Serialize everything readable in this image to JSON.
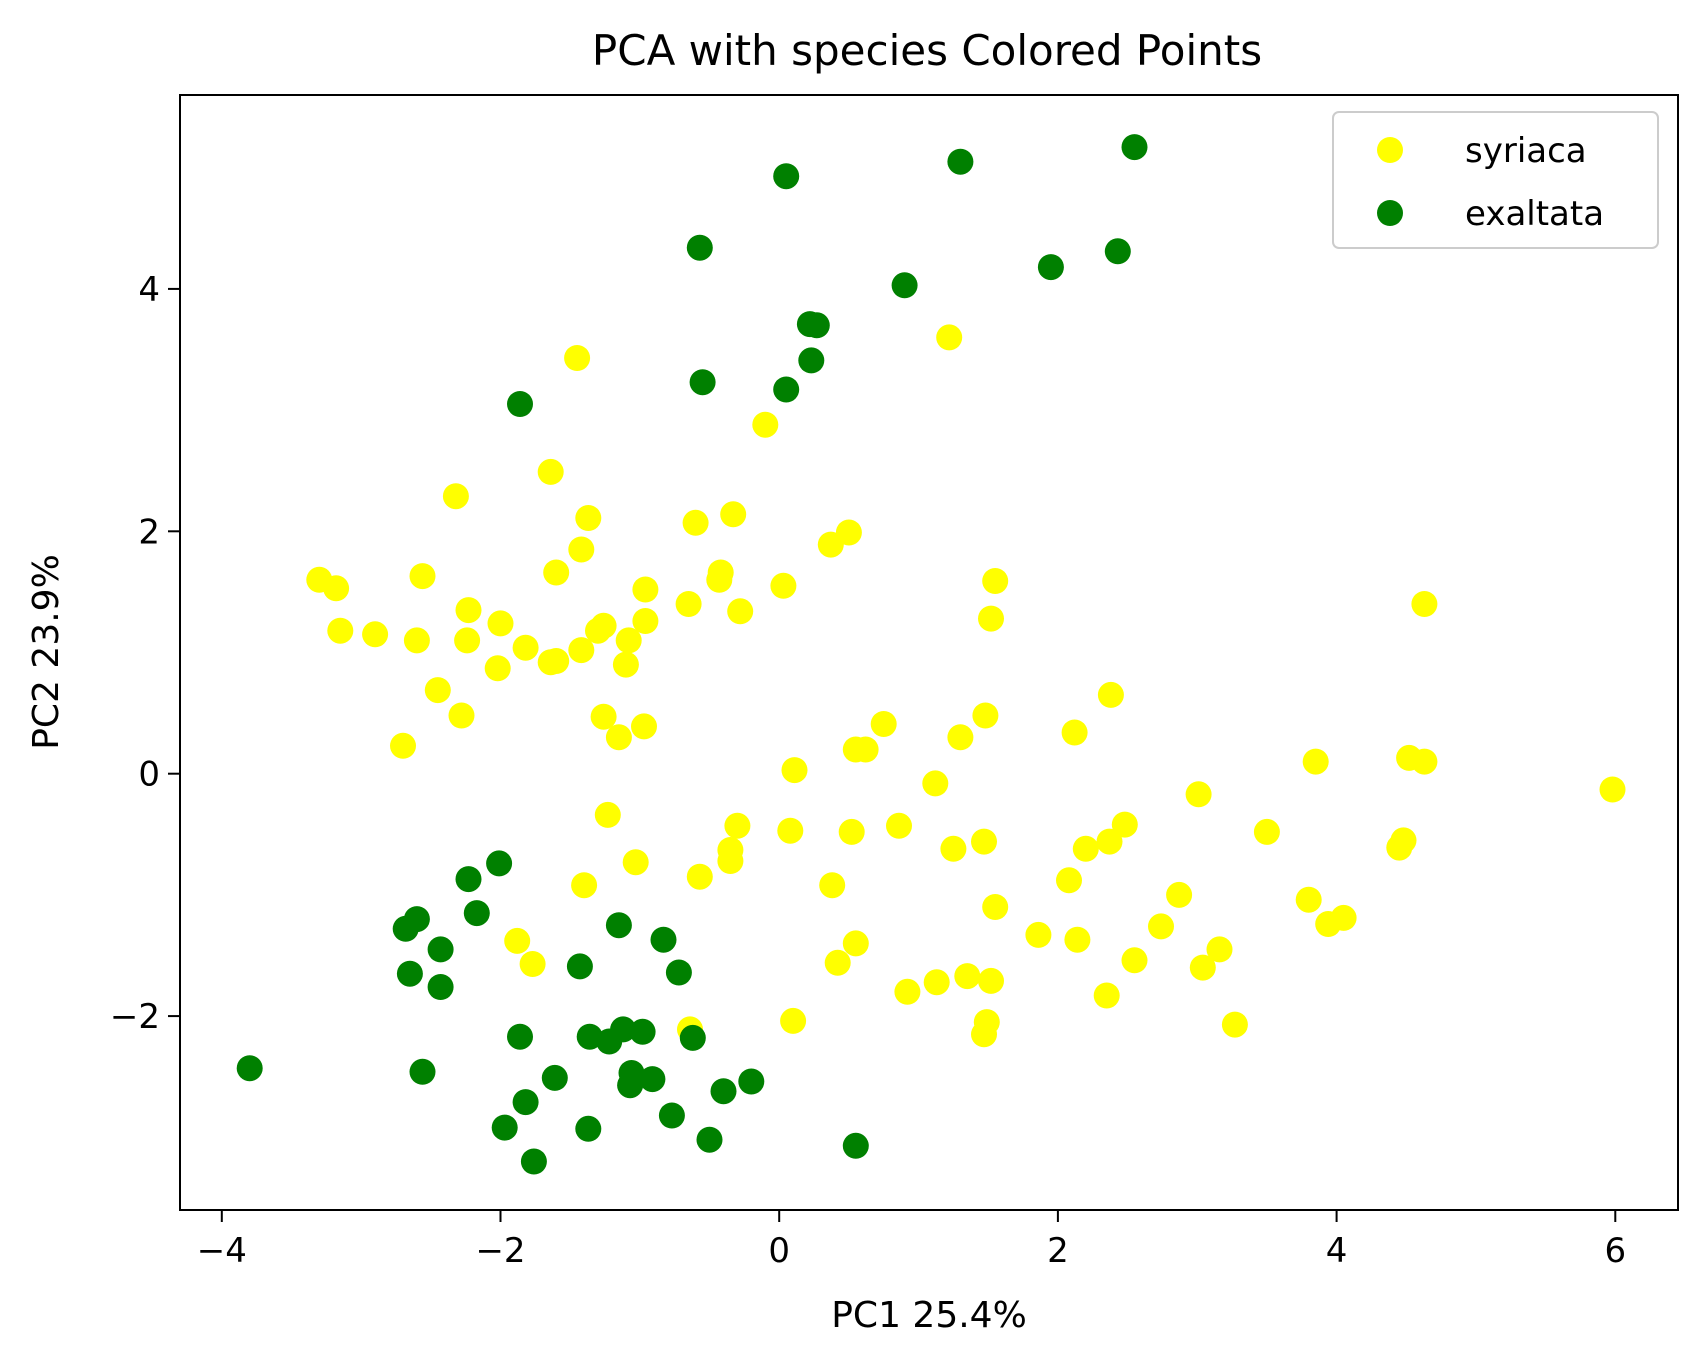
{
  "chart_data": {
    "type": "scatter",
    "title": "PCA with species Colored Points",
    "xlabel": "PC1 25.4%",
    "ylabel": "PC2 23.9%",
    "xlim": [
      -4.3,
      6.45
    ],
    "ylim": [
      -3.6,
      5.6
    ],
    "xticks": [
      -4,
      -2,
      0,
      2,
      4,
      6
    ],
    "yticks": [
      -2,
      0,
      2,
      4
    ],
    "xtick_labels": [
      "−4",
      "−2",
      "0",
      "2",
      "4",
      "6"
    ],
    "ytick_labels": [
      "−2",
      "0",
      "2",
      "4"
    ],
    "grid": false,
    "legend_position": "top-right",
    "series": [
      {
        "name": "syriaca",
        "color": "#ffff00",
        "points": [
          [
            -3.3,
            1.6
          ],
          [
            -3.18,
            1.53
          ],
          [
            -3.15,
            1.18
          ],
          [
            -2.9,
            1.15
          ],
          [
            -2.6,
            1.1
          ],
          [
            -2.56,
            1.63
          ],
          [
            -2.7,
            0.23
          ],
          [
            -2.45,
            0.69
          ],
          [
            -2.28,
            0.48
          ],
          [
            -2.32,
            2.29
          ],
          [
            -2.23,
            1.35
          ],
          [
            -2.24,
            1.1
          ],
          [
            -2.0,
            1.24
          ],
          [
            -2.02,
            0.87
          ],
          [
            -1.82,
            1.04
          ],
          [
            -1.64,
            0.92
          ],
          [
            -1.6,
            0.93
          ],
          [
            -1.64,
            2.49
          ],
          [
            -1.6,
            1.66
          ],
          [
            -1.45,
            3.43
          ],
          [
            -1.42,
            1.85
          ],
          [
            -1.42,
            1.02
          ],
          [
            -1.37,
            2.11
          ],
          [
            -1.3,
            1.18
          ],
          [
            -1.26,
            1.22
          ],
          [
            -1.26,
            0.47
          ],
          [
            -1.15,
            0.3
          ],
          [
            -1.1,
            0.9
          ],
          [
            -1.08,
            1.1
          ],
          [
            -0.96,
            1.26
          ],
          [
            -0.97,
            0.39
          ],
          [
            -0.96,
            1.52
          ],
          [
            -0.65,
            1.4
          ],
          [
            -0.6,
            2.07
          ],
          [
            -0.42,
            1.66
          ],
          [
            -0.43,
            1.6
          ],
          [
            -0.33,
            2.14
          ],
          [
            -0.28,
            1.34
          ],
          [
            -0.1,
            2.88
          ],
          [
            0.03,
            1.55
          ],
          [
            0.37,
            1.89
          ],
          [
            0.5,
            1.99
          ],
          [
            1.22,
            3.6
          ],
          [
            1.55,
            1.59
          ],
          [
            1.52,
            1.28
          ],
          [
            4.63,
            1.4
          ],
          [
            2.38,
            0.65
          ],
          [
            2.12,
            0.34
          ],
          [
            1.48,
            0.48
          ],
          [
            1.3,
            0.3
          ],
          [
            0.75,
            0.41
          ],
          [
            0.55,
            0.2
          ],
          [
            0.62,
            0.2
          ],
          [
            0.11,
            0.03
          ],
          [
            1.12,
            -0.08
          ],
          [
            3.01,
            -0.17
          ],
          [
            3.85,
            0.1
          ],
          [
            4.52,
            0.13
          ],
          [
            4.63,
            0.1
          ],
          [
            5.98,
            -0.13
          ],
          [
            -1.23,
            -0.34
          ],
          [
            -1.4,
            -0.92
          ],
          [
            -1.03,
            -0.73
          ],
          [
            -0.35,
            -0.63
          ],
          [
            -0.35,
            -0.72
          ],
          [
            -0.3,
            -0.43
          ],
          [
            -0.57,
            -0.85
          ],
          [
            0.08,
            -0.47
          ],
          [
            0.52,
            -0.48
          ],
          [
            0.86,
            -0.43
          ],
          [
            1.25,
            -0.62
          ],
          [
            1.47,
            -0.56
          ],
          [
            0.38,
            -0.92
          ],
          [
            1.55,
            -1.1
          ],
          [
            1.86,
            -1.33
          ],
          [
            2.08,
            -0.88
          ],
          [
            2.14,
            -1.37
          ],
          [
            2.2,
            -0.62
          ],
          [
            2.37,
            -0.56
          ],
          [
            2.48,
            -0.42
          ],
          [
            2.74,
            -1.26
          ],
          [
            2.87,
            -1.0
          ],
          [
            3.5,
            -0.48
          ],
          [
            3.8,
            -1.04
          ],
          [
            3.94,
            -1.24
          ],
          [
            4.05,
            -1.19
          ],
          [
            4.45,
            -0.61
          ],
          [
            4.48,
            -0.55
          ],
          [
            -1.88,
            -1.38
          ],
          [
            -1.77,
            -1.57
          ],
          [
            -0.64,
            -2.11
          ],
          [
            0.1,
            -2.04
          ],
          [
            0.42,
            -1.56
          ],
          [
            0.55,
            -1.4
          ],
          [
            0.92,
            -1.8
          ],
          [
            1.13,
            -1.72
          ],
          [
            1.35,
            -1.67
          ],
          [
            1.52,
            -1.71
          ],
          [
            1.49,
            -2.05
          ],
          [
            1.47,
            -2.15
          ],
          [
            2.35,
            -1.83
          ],
          [
            2.55,
            -1.54
          ],
          [
            3.04,
            -1.6
          ],
          [
            3.16,
            -1.45
          ],
          [
            3.27,
            -2.07
          ]
        ]
      },
      {
        "name": "exaltata",
        "color": "#008000",
        "points": [
          [
            2.55,
            5.17
          ],
          [
            1.3,
            5.05
          ],
          [
            0.05,
            4.93
          ],
          [
            -0.57,
            4.34
          ],
          [
            0.9,
            4.03
          ],
          [
            1.95,
            4.18
          ],
          [
            2.43,
            4.31
          ],
          [
            0.22,
            3.71
          ],
          [
            0.27,
            3.7
          ],
          [
            0.23,
            3.41
          ],
          [
            -0.55,
            3.23
          ],
          [
            0.05,
            3.17
          ],
          [
            -1.86,
            3.05
          ],
          [
            -2.01,
            -0.74
          ],
          [
            -2.23,
            -0.87
          ],
          [
            -2.17,
            -1.15
          ],
          [
            -2.6,
            -1.2
          ],
          [
            -2.68,
            -1.28
          ],
          [
            -2.43,
            -1.45
          ],
          [
            -2.65,
            -1.65
          ],
          [
            -2.43,
            -1.76
          ],
          [
            -1.15,
            -1.25
          ],
          [
            -0.83,
            -1.37
          ],
          [
            -0.72,
            -1.64
          ],
          [
            -1.43,
            -1.59
          ],
          [
            -3.8,
            -2.43
          ],
          [
            -2.56,
            -2.46
          ],
          [
            -1.86,
            -2.17
          ],
          [
            -1.36,
            -2.17
          ],
          [
            -1.22,
            -2.21
          ],
          [
            -1.12,
            -2.11
          ],
          [
            -0.98,
            -2.13
          ],
          [
            -0.62,
            -2.18
          ],
          [
            -1.61,
            -2.51
          ],
          [
            -1.06,
            -2.47
          ],
          [
            -1.07,
            -2.57
          ],
          [
            -0.91,
            -2.52
          ],
          [
            -0.2,
            -2.54
          ],
          [
            -0.4,
            -2.62
          ],
          [
            -1.82,
            -2.71
          ],
          [
            -1.97,
            -2.92
          ],
          [
            -1.37,
            -2.93
          ],
          [
            -0.77,
            -2.82
          ],
          [
            -0.5,
            -3.02
          ],
          [
            0.55,
            -3.07
          ],
          [
            -1.76,
            -3.2
          ]
        ]
      }
    ]
  }
}
